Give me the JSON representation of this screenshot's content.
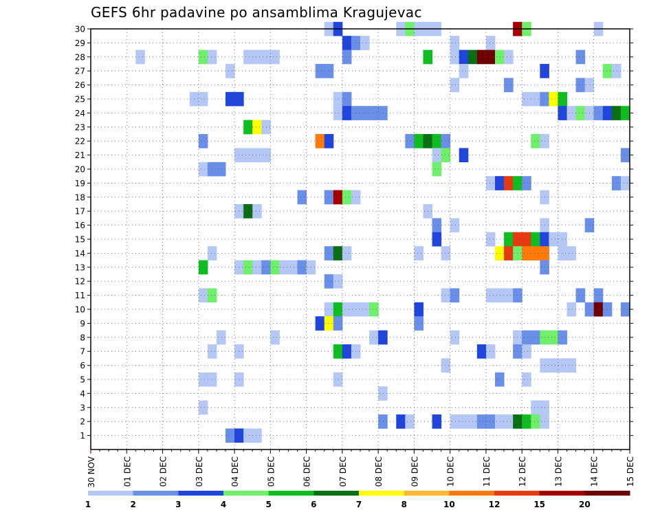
{
  "chart_data": {
    "type": "heatmap",
    "title": "GEFS 6hr padavine po ansamblima Kragujevac",
    "xlabel": "",
    "ylabel": "",
    "x_tick_labels": [
      "30 NOV",
      "01 DEC",
      "02 DEC",
      "03 DEC",
      "04 DEC",
      "05 DEC",
      "06 DEC",
      "07 DEC",
      "08 DEC",
      "09 DEC",
      "10 DEC",
      "11 DEC",
      "12 DEC",
      "13 DEC",
      "14 DEC",
      "15 DEC"
    ],
    "xlim_days": [
      0,
      15
    ],
    "y_tick_labels": [
      "1",
      "2",
      "3",
      "4",
      "5",
      "6",
      "7",
      "8",
      "9",
      "10",
      "11",
      "12",
      "13",
      "14",
      "15",
      "16",
      "17",
      "18",
      "19",
      "20",
      "21",
      "22",
      "23",
      "24",
      "25",
      "26",
      "27",
      "28",
      "29",
      "30"
    ],
    "ylim": [
      0,
      30
    ],
    "grid": true,
    "legend_position": "bottom",
    "colorbar": {
      "labels": [
        "1",
        "2",
        "3",
        "4",
        "5",
        "6",
        "7",
        "8",
        "10",
        "12",
        "15",
        "20"
      ],
      "colors": [
        "#b4c7f5",
        "#6a8fe8",
        "#1f45dc",
        "#6ef06a",
        "#0ebe20",
        "#0a6e14",
        "#ffff00",
        "#ffb830",
        "#ff7a0a",
        "#e83a10",
        "#a50000",
        "#6e0000"
      ]
    },
    "cells_note": "each cell = [member, day_offset, color_class_index]; day_offset in days from 30 NOV (6-hour steps = 0.25 day)",
    "cells": [
      [
        30,
        6.5,
        0
      ],
      [
        30,
        6.75,
        2
      ],
      [
        30,
        8.5,
        0
      ],
      [
        30,
        8.75,
        3
      ],
      [
        30,
        9.0,
        0
      ],
      [
        30,
        9.25,
        0
      ],
      [
        30,
        9.5,
        0
      ],
      [
        30,
        11.75,
        10
      ],
      [
        30,
        12.0,
        3
      ],
      [
        30,
        14.0,
        0
      ],
      [
        29,
        7.0,
        2
      ],
      [
        29,
        7.25,
        1
      ],
      [
        29,
        7.5,
        0
      ],
      [
        29,
        10.0,
        0
      ],
      [
        29,
        11.0,
        0
      ],
      [
        28,
        1.25,
        0
      ],
      [
        28,
        3.0,
        3
      ],
      [
        28,
        3.25,
        0
      ],
      [
        28,
        4.25,
        0
      ],
      [
        28,
        4.5,
        0
      ],
      [
        28,
        4.75,
        0
      ],
      [
        28,
        5.0,
        0
      ],
      [
        28,
        7.0,
        1
      ],
      [
        28,
        9.25,
        4
      ],
      [
        28,
        10.0,
        0
      ],
      [
        28,
        10.25,
        2
      ],
      [
        28,
        10.5,
        5
      ],
      [
        28,
        10.75,
        11
      ],
      [
        28,
        11.0,
        11
      ],
      [
        28,
        11.25,
        3
      ],
      [
        28,
        11.5,
        0
      ],
      [
        28,
        13.5,
        1
      ],
      [
        27,
        3.75,
        0
      ],
      [
        27,
        6.25,
        1
      ],
      [
        27,
        6.5,
        1
      ],
      [
        27,
        10.25,
        0
      ],
      [
        27,
        12.5,
        2
      ],
      [
        27,
        14.25,
        3
      ],
      [
        27,
        14.5,
        0
      ],
      [
        26,
        10.0,
        0
      ],
      [
        26,
        11.5,
        1
      ],
      [
        26,
        13.5,
        1
      ],
      [
        26,
        13.75,
        0
      ],
      [
        25,
        2.75,
        0
      ],
      [
        25,
        3.0,
        0
      ],
      [
        25,
        3.75,
        2
      ],
      [
        25,
        4.0,
        2
      ],
      [
        25,
        6.75,
        0
      ],
      [
        25,
        7.0,
        1
      ],
      [
        25,
        12.0,
        0
      ],
      [
        25,
        12.25,
        0
      ],
      [
        25,
        12.5,
        1
      ],
      [
        25,
        12.75,
        6
      ],
      [
        25,
        13.0,
        4
      ],
      [
        24,
        6.75,
        0
      ],
      [
        24,
        7.0,
        2
      ],
      [
        24,
        7.25,
        1
      ],
      [
        24,
        7.5,
        1
      ],
      [
        24,
        7.75,
        1
      ],
      [
        24,
        8.0,
        1
      ],
      [
        24,
        13.0,
        2
      ],
      [
        24,
        13.25,
        0
      ],
      [
        24,
        13.5,
        3
      ],
      [
        24,
        13.75,
        0
      ],
      [
        24,
        14.0,
        1
      ],
      [
        24,
        14.25,
        2
      ],
      [
        24,
        14.5,
        5
      ],
      [
        24,
        14.75,
        4
      ],
      [
        23,
        4.25,
        4
      ],
      [
        23,
        4.5,
        6
      ],
      [
        23,
        4.75,
        0
      ],
      [
        22,
        3.0,
        1
      ],
      [
        22,
        6.25,
        8
      ],
      [
        22,
        6.5,
        2
      ],
      [
        22,
        8.75,
        1
      ],
      [
        22,
        9.0,
        4
      ],
      [
        22,
        9.25,
        5
      ],
      [
        22,
        9.5,
        4
      ],
      [
        22,
        9.75,
        1
      ],
      [
        22,
        12.25,
        3
      ],
      [
        22,
        12.5,
        0
      ],
      [
        21,
        4.0,
        0
      ],
      [
        21,
        4.25,
        0
      ],
      [
        21,
        4.5,
        0
      ],
      [
        21,
        4.75,
        0
      ],
      [
        21,
        9.5,
        0
      ],
      [
        21,
        9.75,
        3
      ],
      [
        21,
        10.25,
        2
      ],
      [
        21,
        14.75,
        1
      ],
      [
        20,
        3.0,
        0
      ],
      [
        20,
        3.25,
        1
      ],
      [
        20,
        3.5,
        1
      ],
      [
        20,
        9.5,
        3
      ],
      [
        19,
        11.0,
        0
      ],
      [
        19,
        11.25,
        2
      ],
      [
        19,
        11.5,
        9
      ],
      [
        19,
        11.75,
        4
      ],
      [
        19,
        12.0,
        1
      ],
      [
        19,
        14.5,
        1
      ],
      [
        19,
        14.75,
        0
      ],
      [
        18,
        5.75,
        1
      ],
      [
        18,
        6.5,
        1
      ],
      [
        18,
        6.75,
        10
      ],
      [
        18,
        7.0,
        3
      ],
      [
        18,
        7.25,
        0
      ],
      [
        18,
        12.5,
        0
      ],
      [
        17,
        4.0,
        0
      ],
      [
        17,
        4.25,
        5
      ],
      [
        17,
        4.5,
        0
      ],
      [
        17,
        9.25,
        0
      ],
      [
        16,
        9.5,
        1
      ],
      [
        16,
        10.0,
        0
      ],
      [
        16,
        12.5,
        0
      ],
      [
        16,
        13.75,
        1
      ],
      [
        15,
        9.5,
        2
      ],
      [
        15,
        11.0,
        0
      ],
      [
        15,
        11.5,
        4
      ],
      [
        15,
        11.75,
        9
      ],
      [
        15,
        12.0,
        9
      ],
      [
        15,
        12.25,
        4
      ],
      [
        15,
        12.5,
        2
      ],
      [
        15,
        12.75,
        0
      ],
      [
        15,
        13.0,
        0
      ],
      [
        14,
        3.25,
        0
      ],
      [
        14,
        6.5,
        1
      ],
      [
        14,
        6.75,
        5
      ],
      [
        14,
        7.0,
        0
      ],
      [
        14,
        9.0,
        0
      ],
      [
        14,
        9.75,
        0
      ],
      [
        14,
        11.25,
        6
      ],
      [
        14,
        11.5,
        9
      ],
      [
        14,
        11.75,
        3
      ],
      [
        14,
        12.0,
        8
      ],
      [
        14,
        12.25,
        8
      ],
      [
        14,
        12.5,
        8
      ],
      [
        14,
        13.0,
        0
      ],
      [
        14,
        13.25,
        0
      ],
      [
        13,
        3.0,
        4
      ],
      [
        13,
        4.0,
        0
      ],
      [
        13,
        4.25,
        3
      ],
      [
        13,
        4.5,
        0
      ],
      [
        13,
        4.75,
        1
      ],
      [
        13,
        5.0,
        3
      ],
      [
        13,
        5.25,
        0
      ],
      [
        13,
        5.5,
        0
      ],
      [
        13,
        5.75,
        1
      ],
      [
        13,
        6.0,
        0
      ],
      [
        13,
        12.5,
        1
      ],
      [
        12,
        6.5,
        1
      ],
      [
        12,
        6.75,
        0
      ],
      [
        11,
        3.0,
        0
      ],
      [
        11,
        3.25,
        3
      ],
      [
        11,
        9.75,
        0
      ],
      [
        11,
        10.0,
        1
      ],
      [
        11,
        11.0,
        0
      ],
      [
        11,
        11.25,
        0
      ],
      [
        11,
        11.5,
        0
      ],
      [
        11,
        11.75,
        1
      ],
      [
        11,
        13.5,
        1
      ],
      [
        11,
        14.0,
        1
      ],
      [
        10,
        6.5,
        0
      ],
      [
        10,
        6.75,
        4
      ],
      [
        10,
        7.0,
        0
      ],
      [
        10,
        7.25,
        0
      ],
      [
        10,
        7.5,
        0
      ],
      [
        10,
        7.75,
        3
      ],
      [
        10,
        9.0,
        2
      ],
      [
        10,
        13.25,
        0
      ],
      [
        10,
        13.75,
        1
      ],
      [
        10,
        14.0,
        11
      ],
      [
        10,
        14.25,
        1
      ],
      [
        10,
        14.75,
        1
      ],
      [
        9,
        6.25,
        2
      ],
      [
        9,
        6.5,
        6
      ],
      [
        9,
        6.75,
        1
      ],
      [
        9,
        9.0,
        1
      ],
      [
        8,
        3.5,
        0
      ],
      [
        8,
        5.0,
        0
      ],
      [
        8,
        7.75,
        0
      ],
      [
        8,
        8.0,
        2
      ],
      [
        8,
        10.0,
        0
      ],
      [
        8,
        11.75,
        0
      ],
      [
        8,
        12.0,
        1
      ],
      [
        8,
        12.25,
        1
      ],
      [
        8,
        12.5,
        3
      ],
      [
        8,
        12.75,
        3
      ],
      [
        8,
        13.0,
        1
      ],
      [
        7,
        3.25,
        0
      ],
      [
        7,
        4.0,
        0
      ],
      [
        7,
        6.75,
        4
      ],
      [
        7,
        7.0,
        2
      ],
      [
        7,
        7.25,
        0
      ],
      [
        7,
        10.75,
        2
      ],
      [
        7,
        11.0,
        0
      ],
      [
        7,
        11.75,
        1
      ],
      [
        7,
        12.0,
        0
      ],
      [
        6,
        9.75,
        0
      ],
      [
        6,
        12.5,
        0
      ],
      [
        6,
        12.75,
        0
      ],
      [
        6,
        13.0,
        0
      ],
      [
        6,
        13.25,
        0
      ],
      [
        5,
        3.0,
        0
      ],
      [
        5,
        3.25,
        0
      ],
      [
        5,
        4.0,
        0
      ],
      [
        5,
        6.75,
        0
      ],
      [
        5,
        11.25,
        1
      ],
      [
        5,
        12.0,
        0
      ],
      [
        4,
        8.0,
        0
      ],
      [
        3,
        3.0,
        0
      ],
      [
        3,
        12.25,
        0
      ],
      [
        3,
        12.5,
        0
      ],
      [
        2,
        8.0,
        1
      ],
      [
        2,
        8.5,
        2
      ],
      [
        2,
        8.75,
        0
      ],
      [
        2,
        9.5,
        2
      ],
      [
        2,
        10.0,
        0
      ],
      [
        2,
        10.25,
        0
      ],
      [
        2,
        10.5,
        0
      ],
      [
        2,
        10.75,
        1
      ],
      [
        2,
        11.0,
        1
      ],
      [
        2,
        11.25,
        0
      ],
      [
        2,
        11.5,
        0
      ],
      [
        2,
        11.75,
        5
      ],
      [
        2,
        12.0,
        4
      ],
      [
        2,
        12.25,
        3
      ],
      [
        2,
        12.5,
        0
      ],
      [
        1,
        3.75,
        1
      ],
      [
        1,
        4.0,
        2
      ],
      [
        1,
        4.25,
        0
      ],
      [
        1,
        4.5,
        0
      ]
    ]
  }
}
